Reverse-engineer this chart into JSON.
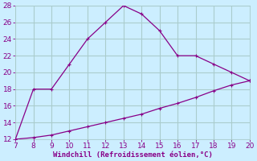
{
  "line1_x": [
    7,
    8,
    9,
    10,
    11,
    12,
    13,
    14,
    15,
    16,
    17,
    18,
    19,
    20
  ],
  "line1_y": [
    12,
    18,
    18,
    21,
    24,
    26,
    28,
    27,
    25,
    22,
    22,
    21,
    20,
    19
  ],
  "line2_x": [
    7,
    8,
    9,
    10,
    11,
    12,
    13,
    14,
    15,
    16,
    17,
    18,
    19,
    20
  ],
  "line2_y": [
    12,
    12.2,
    12.5,
    13.0,
    13.5,
    14.0,
    14.5,
    15.0,
    15.7,
    16.3,
    17.0,
    17.8,
    18.5,
    19.0
  ],
  "line_color": "#880088",
  "marker": "+",
  "bg_color": "#cceeff",
  "grid_color": "#aacccc",
  "xlabel": "Windchill (Refroidissement éolien,°C)",
  "xlabel_color": "#880088",
  "tick_color": "#880088",
  "xlim": [
    7,
    20
  ],
  "ylim": [
    12,
    28
  ],
  "xticks": [
    7,
    8,
    9,
    10,
    11,
    12,
    13,
    14,
    15,
    16,
    17,
    18,
    19,
    20
  ],
  "yticks": [
    12,
    14,
    16,
    18,
    20,
    22,
    24,
    26,
    28
  ]
}
